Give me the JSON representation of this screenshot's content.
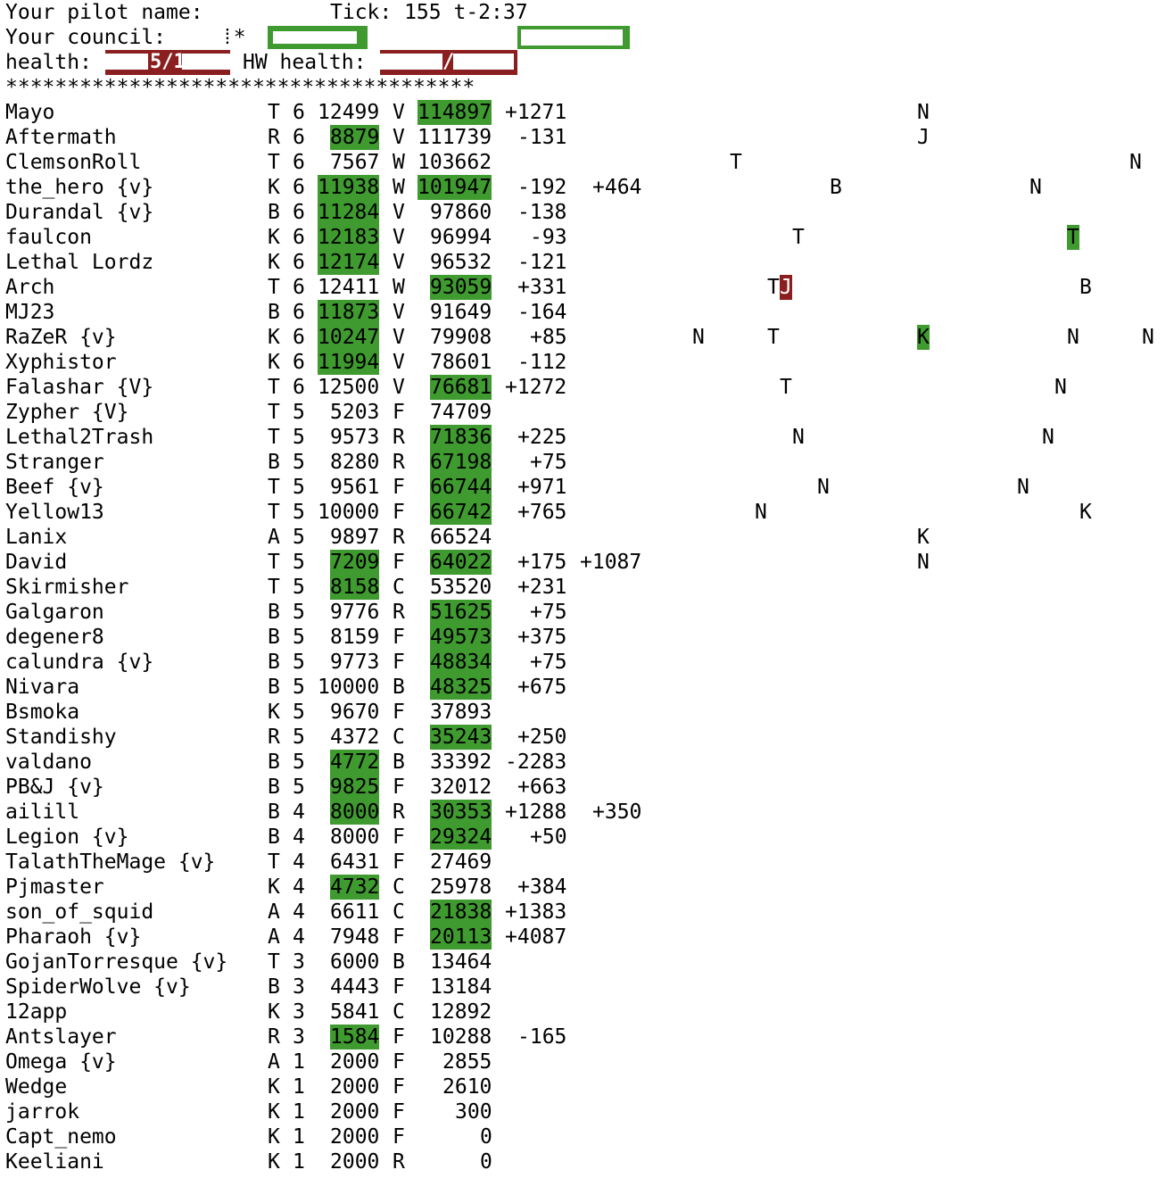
{
  "header": {
    "pilot_label": "Your pilot name:",
    "tick_label": "Tick: 155 t-2:37",
    "council_label": "Your council:",
    "council_glyph": "⁞*",
    "health_label": "health:",
    "health_value": "5/1",
    "hw_health_label": "HW health:",
    "hw_health_value": "/",
    "stars": "**************************************"
  },
  "colors": {
    "green": "#3f9b2f",
    "red": "#8b1e1e"
  },
  "rows": [
    {
      "name": "Mayo",
      "c": "T",
      "lvl": "6",
      "v1": "12499",
      "v1hl": false,
      "s": "V",
      "v2": "114897",
      "v2hl": true,
      "d": "+1271",
      "d2": ""
    },
    {
      "name": "Aftermath",
      "c": "R",
      "lvl": "6",
      "v1": "8879",
      "v1hl": true,
      "s": "V",
      "v2": "111739",
      "v2hl": false,
      "d": "-131",
      "d2": ""
    },
    {
      "name": "ClemsonRoll",
      "c": "T",
      "lvl": "6",
      "v1": "7567",
      "v1hl": false,
      "s": "W",
      "v2": "103662",
      "v2hl": false,
      "d": "",
      "d2": ""
    },
    {
      "name": "the_hero {v}",
      "c": "K",
      "lvl": "6",
      "v1": "11938",
      "v1hl": true,
      "s": "W",
      "v2": "101947",
      "v2hl": true,
      "d": "-192",
      "d2": "+464"
    },
    {
      "name": "Durandal {v}",
      "c": "B",
      "lvl": "6",
      "v1": "11284",
      "v1hl": true,
      "s": "V",
      "v2": "97860",
      "v2hl": false,
      "d": "-138",
      "d2": ""
    },
    {
      "name": "faulcon",
      "c": "K",
      "lvl": "6",
      "v1": "12183",
      "v1hl": true,
      "s": "V",
      "v2": "96994",
      "v2hl": false,
      "d": "-93",
      "d2": ""
    },
    {
      "name": "Lethal Lordz",
      "c": "K",
      "lvl": "6",
      "v1": "12174",
      "v1hl": true,
      "s": "V",
      "v2": "96532",
      "v2hl": false,
      "d": "-121",
      "d2": ""
    },
    {
      "name": "Arch",
      "c": "T",
      "lvl": "6",
      "v1": "12411",
      "v1hl": false,
      "s": "W",
      "v2": "93059",
      "v2hl": true,
      "d": "+331",
      "d2": ""
    },
    {
      "name": "MJ23",
      "c": "B",
      "lvl": "6",
      "v1": "11873",
      "v1hl": true,
      "s": "V",
      "v2": "91649",
      "v2hl": false,
      "d": "-164",
      "d2": ""
    },
    {
      "name": "RaZeR {v}",
      "c": "K",
      "lvl": "6",
      "v1": "10247",
      "v1hl": true,
      "s": "V",
      "v2": "79908",
      "v2hl": false,
      "d": "+85",
      "d2": ""
    },
    {
      "name": "Xyphistor",
      "c": "K",
      "lvl": "6",
      "v1": "11994",
      "v1hl": true,
      "s": "V",
      "v2": "78601",
      "v2hl": false,
      "d": "-112",
      "d2": ""
    },
    {
      "name": "Falashar {V}",
      "c": "T",
      "lvl": "6",
      "v1": "12500",
      "v1hl": false,
      "s": "V",
      "v2": "76681",
      "v2hl": true,
      "d": "+1272",
      "d2": ""
    },
    {
      "name": "Zypher {V}",
      "c": "T",
      "lvl": "5",
      "v1": "5203",
      "v1hl": false,
      "s": "F",
      "v2": "74709",
      "v2hl": false,
      "d": "",
      "d2": ""
    },
    {
      "name": "Lethal2Trash",
      "c": "T",
      "lvl": "5",
      "v1": "9573",
      "v1hl": false,
      "s": "R",
      "v2": "71836",
      "v2hl": true,
      "d": "+225",
      "d2": ""
    },
    {
      "name": "Stranger",
      "c": "B",
      "lvl": "5",
      "v1": "8280",
      "v1hl": false,
      "s": "R",
      "v2": "67198",
      "v2hl": true,
      "d": "+75",
      "d2": ""
    },
    {
      "name": "Beef {v}",
      "c": "T",
      "lvl": "5",
      "v1": "9561",
      "v1hl": false,
      "s": "F",
      "v2": "66744",
      "v2hl": true,
      "d": "+971",
      "d2": ""
    },
    {
      "name": "Yellow13",
      "c": "T",
      "lvl": "5",
      "v1": "10000",
      "v1hl": false,
      "s": "F",
      "v2": "66742",
      "v2hl": true,
      "d": "+765",
      "d2": ""
    },
    {
      "name": "Lanix",
      "c": "A",
      "lvl": "5",
      "v1": "9897",
      "v1hl": false,
      "s": "R",
      "v2": "66524",
      "v2hl": false,
      "d": "",
      "d2": ""
    },
    {
      "name": "David",
      "c": "T",
      "lvl": "5",
      "v1": "7209",
      "v1hl": true,
      "s": "F",
      "v2": "64022",
      "v2hl": true,
      "d": "+175",
      "d2": "+1087"
    },
    {
      "name": "Skirmisher",
      "c": "T",
      "lvl": "5",
      "v1": "8158",
      "v1hl": true,
      "s": "C",
      "v2": "53520",
      "v2hl": false,
      "d": "+231",
      "d2": ""
    },
    {
      "name": "Galgaron",
      "c": "B",
      "lvl": "5",
      "v1": "9776",
      "v1hl": false,
      "s": "R",
      "v2": "51625",
      "v2hl": true,
      "d": "+75",
      "d2": ""
    },
    {
      "name": "degener8",
      "c": "B",
      "lvl": "5",
      "v1": "8159",
      "v1hl": false,
      "s": "F",
      "v2": "49573",
      "v2hl": true,
      "d": "+375",
      "d2": ""
    },
    {
      "name": "calundra {v}",
      "c": "B",
      "lvl": "5",
      "v1": "9773",
      "v1hl": false,
      "s": "F",
      "v2": "48834",
      "v2hl": true,
      "d": "+75",
      "d2": ""
    },
    {
      "name": "Nivara",
      "c": "B",
      "lvl": "5",
      "v1": "10000",
      "v1hl": false,
      "s": "B",
      "v2": "48325",
      "v2hl": true,
      "d": "+675",
      "d2": ""
    },
    {
      "name": "Bsmoka",
      "c": "K",
      "lvl": "5",
      "v1": "9670",
      "v1hl": false,
      "s": "F",
      "v2": "37893",
      "v2hl": false,
      "d": "",
      "d2": ""
    },
    {
      "name": "Standishy",
      "c": "R",
      "lvl": "5",
      "v1": "4372",
      "v1hl": false,
      "s": "C",
      "v2": "35243",
      "v2hl": true,
      "d": "+250",
      "d2": ""
    },
    {
      "name": "valdano",
      "c": "B",
      "lvl": "5",
      "v1": "4772",
      "v1hl": true,
      "s": "B",
      "v2": "33392",
      "v2hl": false,
      "d": "-2283",
      "d2": ""
    },
    {
      "name": "PB&J {v}",
      "c": "B",
      "lvl": "5",
      "v1": "9825",
      "v1hl": true,
      "s": "F",
      "v2": "32012",
      "v2hl": false,
      "d": "+663",
      "d2": ""
    },
    {
      "name": "ailill",
      "c": "B",
      "lvl": "4",
      "v1": "8000",
      "v1hl": true,
      "s": "R",
      "v2": "30353",
      "v2hl": true,
      "d": "+1288",
      "d2": "+350"
    },
    {
      "name": "Legion {v}",
      "c": "B",
      "lvl": "4",
      "v1": "8000",
      "v1hl": false,
      "s": "F",
      "v2": "29324",
      "v2hl": true,
      "d": "+50",
      "d2": ""
    },
    {
      "name": "TalathTheMage {v}",
      "c": "T",
      "lvl": "4",
      "v1": "6431",
      "v1hl": false,
      "s": "F",
      "v2": "27469",
      "v2hl": false,
      "d": "",
      "d2": ""
    },
    {
      "name": "Pjmaster",
      "c": "K",
      "lvl": "4",
      "v1": "4732",
      "v1hl": true,
      "s": "C",
      "v2": "25978",
      "v2hl": false,
      "d": "+384",
      "d2": ""
    },
    {
      "name": "son_of_squid",
      "c": "A",
      "lvl": "4",
      "v1": "6611",
      "v1hl": false,
      "s": "C",
      "v2": "21838",
      "v2hl": true,
      "d": "+1383",
      "d2": ""
    },
    {
      "name": "Pharaoh {v}",
      "c": "A",
      "lvl": "4",
      "v1": "7948",
      "v1hl": false,
      "s": "F",
      "v2": "20113",
      "v2hl": true,
      "d": "+4087",
      "d2": ""
    },
    {
      "name": "GojanTorresque {v}",
      "c": "T",
      "lvl": "3",
      "v1": "6000",
      "v1hl": false,
      "s": "B",
      "v2": "13464",
      "v2hl": false,
      "d": "",
      "d2": ""
    },
    {
      "name": "SpiderWolve {v}",
      "c": "B",
      "lvl": "3",
      "v1": "4443",
      "v1hl": false,
      "s": "F",
      "v2": "13184",
      "v2hl": false,
      "d": "",
      "d2": ""
    },
    {
      "name": "12app",
      "c": "K",
      "lvl": "3",
      "v1": "5841",
      "v1hl": false,
      "s": "C",
      "v2": "12892",
      "v2hl": false,
      "d": "",
      "d2": ""
    },
    {
      "name": "Antslayer",
      "c": "R",
      "lvl": "3",
      "v1": "1584",
      "v1hl": true,
      "s": "F",
      "v2": "10288",
      "v2hl": false,
      "d": "-165",
      "d2": ""
    },
    {
      "name": "Omega {v}",
      "c": "A",
      "lvl": "1",
      "v1": "2000",
      "v1hl": false,
      "s": "F",
      "v2": "2855",
      "v2hl": false,
      "d": "",
      "d2": ""
    },
    {
      "name": "Wedge",
      "c": "K",
      "lvl": "1",
      "v1": "2000",
      "v1hl": false,
      "s": "F",
      "v2": "2610",
      "v2hl": false,
      "d": "",
      "d2": ""
    },
    {
      "name": "jarrok",
      "c": "K",
      "lvl": "1",
      "v1": "2000",
      "v1hl": false,
      "s": "F",
      "v2": "300",
      "v2hl": false,
      "d": "",
      "d2": ""
    },
    {
      "name": "Capt_nemo",
      "c": "K",
      "lvl": "1",
      "v1": "2000",
      "v1hl": false,
      "s": "F",
      "v2": "0",
      "v2hl": false,
      "d": "",
      "d2": ""
    },
    {
      "name": "Keeliani",
      "c": "K",
      "lvl": "1",
      "v1": "2000",
      "v1hl": false,
      "s": "R",
      "v2": "0",
      "v2hl": false,
      "d": "",
      "d2": ""
    }
  ],
  "map_markers": [
    {
      "row": 0,
      "col": 73,
      "ch": "N",
      "hl": ""
    },
    {
      "row": 1,
      "col": 73,
      "ch": "J",
      "hl": ""
    },
    {
      "row": 2,
      "col": 58,
      "ch": "T",
      "hl": ""
    },
    {
      "row": 2,
      "col": 90,
      "ch": "N",
      "hl": ""
    },
    {
      "row": 3,
      "col": 66,
      "ch": "B",
      "hl": ""
    },
    {
      "row": 3,
      "col": 82,
      "ch": "N",
      "hl": ""
    },
    {
      "row": 5,
      "col": 63,
      "ch": "T",
      "hl": ""
    },
    {
      "row": 5,
      "col": 85,
      "ch": "T",
      "hl": "green"
    },
    {
      "row": 7,
      "col": 61,
      "ch": "T",
      "hl": ""
    },
    {
      "row": 7,
      "col": 62,
      "ch": "J",
      "hl": "red"
    },
    {
      "row": 7,
      "col": 86,
      "ch": "B",
      "hl": ""
    },
    {
      "row": 9,
      "col": 55,
      "ch": "N",
      "hl": ""
    },
    {
      "row": 9,
      "col": 61,
      "ch": "T",
      "hl": ""
    },
    {
      "row": 9,
      "col": 73,
      "ch": "K",
      "hl": "green"
    },
    {
      "row": 9,
      "col": 85,
      "ch": "N",
      "hl": ""
    },
    {
      "row": 9,
      "col": 91,
      "ch": "N",
      "hl": ""
    },
    {
      "row": 11,
      "col": 62,
      "ch": "T",
      "hl": ""
    },
    {
      "row": 11,
      "col": 84,
      "ch": "N",
      "hl": ""
    },
    {
      "row": 13,
      "col": 63,
      "ch": "N",
      "hl": ""
    },
    {
      "row": 13,
      "col": 83,
      "ch": "N",
      "hl": ""
    },
    {
      "row": 15,
      "col": 65,
      "ch": "N",
      "hl": ""
    },
    {
      "row": 15,
      "col": 81,
      "ch": "N",
      "hl": ""
    },
    {
      "row": 16,
      "col": 60,
      "ch": "N",
      "hl": ""
    },
    {
      "row": 16,
      "col": 86,
      "ch": "K",
      "hl": ""
    },
    {
      "row": 17,
      "col": 73,
      "ch": "K",
      "hl": ""
    },
    {
      "row": 18,
      "col": 73,
      "ch": "N",
      "hl": ""
    }
  ]
}
